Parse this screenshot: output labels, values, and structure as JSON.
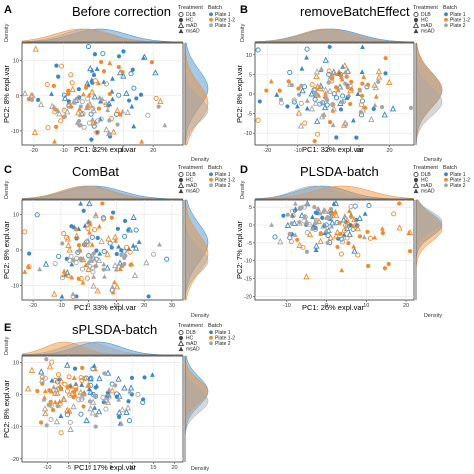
{
  "figure": {
    "treatment_title": "Treatment",
    "batch_title": "Batch",
    "treatments": [
      "DLB",
      "HC",
      "mAD",
      "msAD"
    ],
    "batches": [
      "Plate 1",
      "Plate 1-2",
      "Plate 2"
    ],
    "colors": {
      "Plate 1": "#3a87c8",
      "Plate 1-2": "#f08a2c",
      "Plate 2": "#a6a6a6"
    },
    "density_label": "Density"
  },
  "chart_data": [
    {
      "type": "scatter",
      "panel": "A",
      "title": "Before correction",
      "xlabel": "PC1: 32% expl.var",
      "ylabel": "PC2: 8% expl.var",
      "xticks": [
        -20,
        -10,
        0,
        10,
        20
      ],
      "yticks": [
        -10,
        0,
        10
      ],
      "xlim": [
        -24,
        30
      ],
      "ylim": [
        -14,
        15
      ],
      "grid": true,
      "legend": "top-right"
    },
    {
      "type": "scatter",
      "panel": "B",
      "title": "removeBatchEffect",
      "xlabel": "PC1: 32% expl.var",
      "ylabel": "PC2: 8% expl.var",
      "xticks": [
        -20,
        -10,
        0,
        10,
        20
      ],
      "yticks": [
        -10,
        -5,
        0,
        5,
        10
      ],
      "xlim": [
        -24,
        28
      ],
      "ylim": [
        -13,
        13
      ],
      "grid": true,
      "legend": "top-right"
    },
    {
      "type": "scatter",
      "panel": "C",
      "title": "ComBat",
      "xlabel": "PC1: 33% expl.var",
      "ylabel": "PC2: 8% expl.var",
      "xticks": [
        -20,
        -10,
        0,
        10,
        20,
        30
      ],
      "yticks": [
        -10,
        0,
        10
      ],
      "xlim": [
        -24,
        34
      ],
      "ylim": [
        -14,
        14
      ],
      "grid": true,
      "legend": "top-right"
    },
    {
      "type": "scatter",
      "panel": "D",
      "title": "PLSDA-batch",
      "xlabel": "PC1: 26% expl.var",
      "ylabel": "PC2: 7% expl.var",
      "xticks": [
        -10,
        0,
        10,
        20
      ],
      "yticks": [
        -20,
        -15,
        -10,
        -5,
        0,
        5
      ],
      "xlim": [
        -18,
        22
      ],
      "ylim": [
        -21,
        7
      ],
      "grid": true,
      "legend": "top-right"
    },
    {
      "type": "scatter",
      "panel": "E",
      "title": "sPLSDA-batch",
      "xlabel": "PC1: 17% expl.var",
      "ylabel": "PC2: 8% expl.var",
      "xticks": [
        -10,
        -5,
        0,
        5,
        10,
        15,
        20
      ],
      "yticks": [
        -20,
        -10,
        0,
        10
      ],
      "xlim": [
        -16,
        22
      ],
      "ylim": [
        -21,
        12
      ],
      "grid": true,
      "legend": "top-right"
    }
  ]
}
